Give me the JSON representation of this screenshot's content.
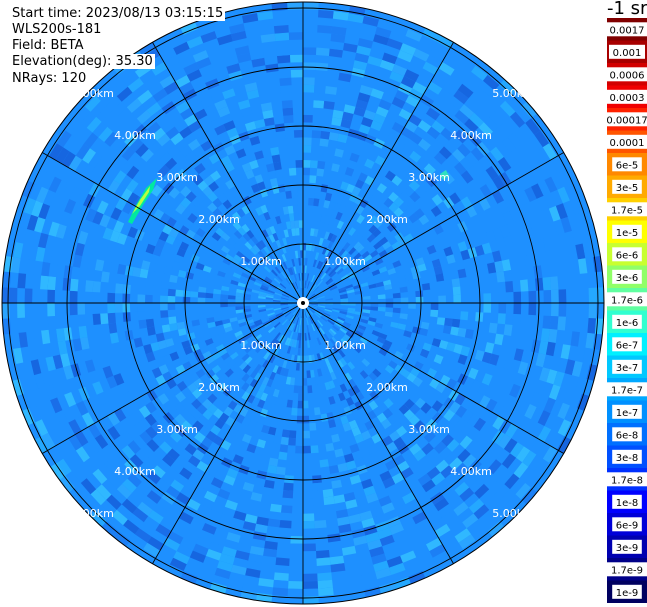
{
  "info": {
    "start_time": "Start time: 2023/08/13 03:15:15",
    "instrument": "WLS200s-181",
    "field": "Field: BETA",
    "elevation": "Elevation(deg): 35.30",
    "nrays": "NRays: 120"
  },
  "colorbar": {
    "title": "-1 sr",
    "labels": [
      "0.0017",
      "0.001",
      "0.0006",
      "0.0003",
      "0.00017",
      "0.0001",
      "6e-5",
      "3e-5",
      "1.7e-5",
      "1e-5",
      "6e-6",
      "3e-6",
      "1.7e-6",
      "1e-6",
      "6e-7",
      "3e-7",
      "1.7e-7",
      "1e-7",
      "6e-8",
      "3e-8",
      "1.7e-8",
      "1e-8",
      "6e-9",
      "3e-9",
      "1.7e-9",
      "1e-9"
    ],
    "colors": [
      "#800000",
      "#a80000",
      "#d20000",
      "#f00000",
      "#ff2200",
      "#ff5500",
      "#ff8800",
      "#ffaa00",
      "#ffd000",
      "#ffff00",
      "#c8ff30",
      "#90ff68",
      "#60ffa0",
      "#30ffd0",
      "#00f0ff",
      "#00c8ff",
      "#00a8ff",
      "#0090ff",
      "#0070ff",
      "#0050ff",
      "#0030ff",
      "#0000ff",
      "#0000d8",
      "#0000b0",
      "#000088",
      "#000060"
    ]
  },
  "rings": {
    "labels": [
      "1.00km",
      "2.00km",
      "3.00km",
      "4.00km",
      "5.00km"
    ]
  }
}
